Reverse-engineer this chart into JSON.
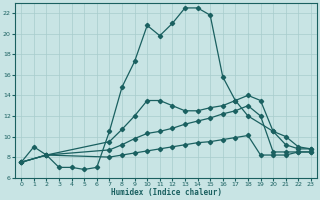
{
  "xlabel": "Humidex (Indice chaleur)",
  "background_color": "#c8e4e4",
  "grid_color": "#a8cccc",
  "line_color": "#1a6060",
  "xlim": [
    -0.5,
    23.5
  ],
  "ylim": [
    6,
    23
  ],
  "xticks": [
    0,
    1,
    2,
    3,
    4,
    5,
    6,
    7,
    8,
    9,
    10,
    11,
    12,
    13,
    14,
    15,
    16,
    17,
    18,
    19,
    20,
    21,
    22,
    23
  ],
  "yticks": [
    6,
    8,
    10,
    12,
    14,
    16,
    18,
    20,
    22
  ],
  "line1_x": [
    0,
    1,
    2,
    3,
    4,
    5,
    6,
    7,
    8,
    9,
    10,
    11,
    12,
    13,
    14,
    15,
    16,
    17,
    18,
    20,
    21,
    22,
    23
  ],
  "line1_y": [
    7.5,
    9.0,
    8.2,
    7.0,
    7.0,
    6.8,
    7.0,
    10.5,
    14.8,
    17.3,
    20.8,
    19.8,
    21.0,
    22.5,
    22.5,
    21.8,
    15.8,
    13.5,
    12.0,
    10.5,
    9.2,
    8.8,
    8.8
  ],
  "line2_x": [
    0,
    2,
    7,
    8,
    9,
    10,
    11,
    12,
    13,
    14,
    15,
    16,
    17,
    18,
    19,
    20,
    21,
    22,
    23
  ],
  "line2_y": [
    7.5,
    8.2,
    9.5,
    10.7,
    12.0,
    13.5,
    13.5,
    13.0,
    12.5,
    12.5,
    12.8,
    13.0,
    13.5,
    14.0,
    13.5,
    10.5,
    10.0,
    9.0,
    8.8
  ],
  "line3_x": [
    0,
    2,
    7,
    8,
    9,
    10,
    11,
    12,
    13,
    14,
    15,
    16,
    17,
    18,
    19,
    20,
    21,
    22,
    23
  ],
  "line3_y": [
    7.5,
    8.2,
    8.7,
    9.2,
    9.8,
    10.3,
    10.5,
    10.8,
    11.2,
    11.5,
    11.8,
    12.2,
    12.5,
    13.0,
    12.0,
    8.5,
    8.5,
    8.5,
    8.5
  ],
  "line4_x": [
    0,
    2,
    7,
    8,
    9,
    10,
    11,
    12,
    13,
    14,
    15,
    16,
    17,
    18,
    19,
    20,
    21,
    22,
    23
  ],
  "line4_y": [
    7.5,
    8.2,
    8.0,
    8.2,
    8.4,
    8.6,
    8.8,
    9.0,
    9.2,
    9.4,
    9.5,
    9.7,
    9.9,
    10.1,
    8.2,
    8.2,
    8.2,
    8.5,
    8.5
  ]
}
